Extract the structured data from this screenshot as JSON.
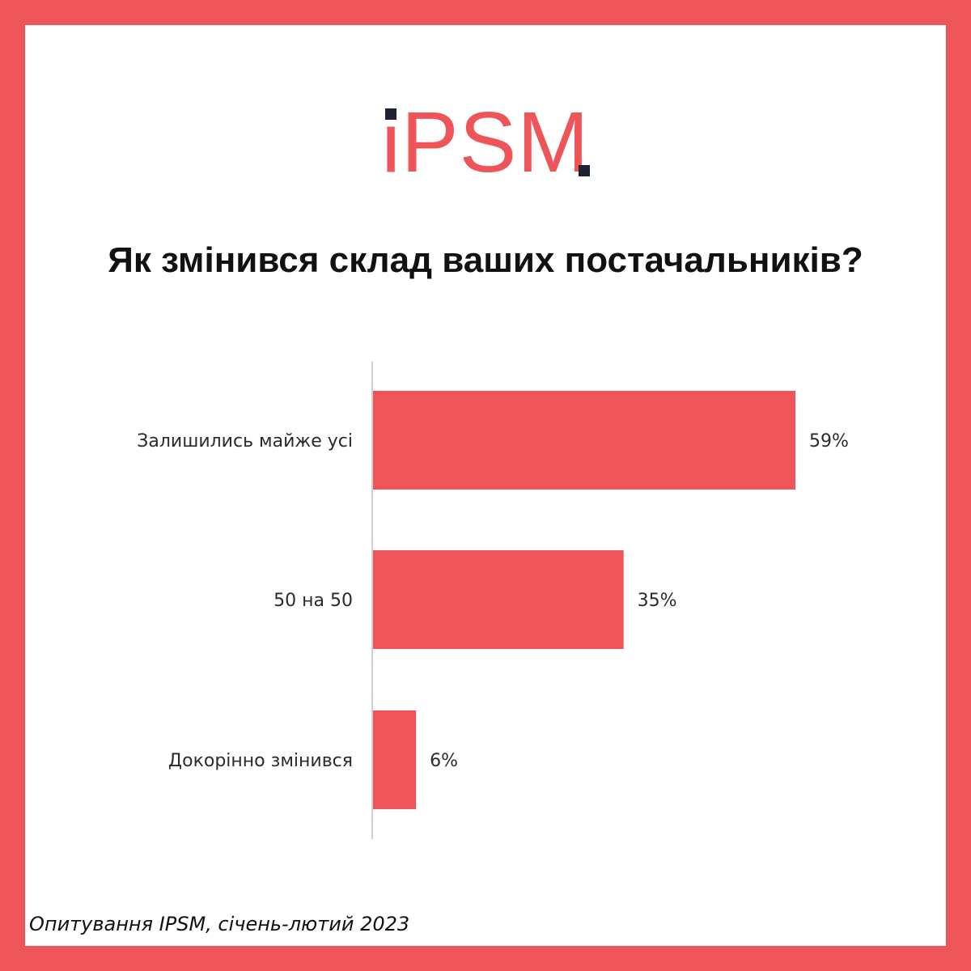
{
  "logo": {
    "text": "iPSM",
    "color": "#ef5459",
    "accent": "#1f2233"
  },
  "title": "Як змінився склад ваших постачальників?",
  "source": "Опитування IPSM, січень-лютий 2023",
  "colors": {
    "border": "#ef5459",
    "bar": "#ef5459",
    "axis": "#cfcfcf"
  },
  "chart_data": {
    "type": "bar",
    "orientation": "horizontal",
    "categories": [
      "Залишились майже усі",
      "50 на 50",
      "Докорінно змінився"
    ],
    "values": [
      59,
      35,
      6
    ],
    "value_labels": [
      "59%",
      "35%",
      "6%"
    ],
    "unit": "%",
    "title": "Як змінився склад ваших постачальників?",
    "xlim": [
      0,
      100
    ],
    "grid": false
  }
}
